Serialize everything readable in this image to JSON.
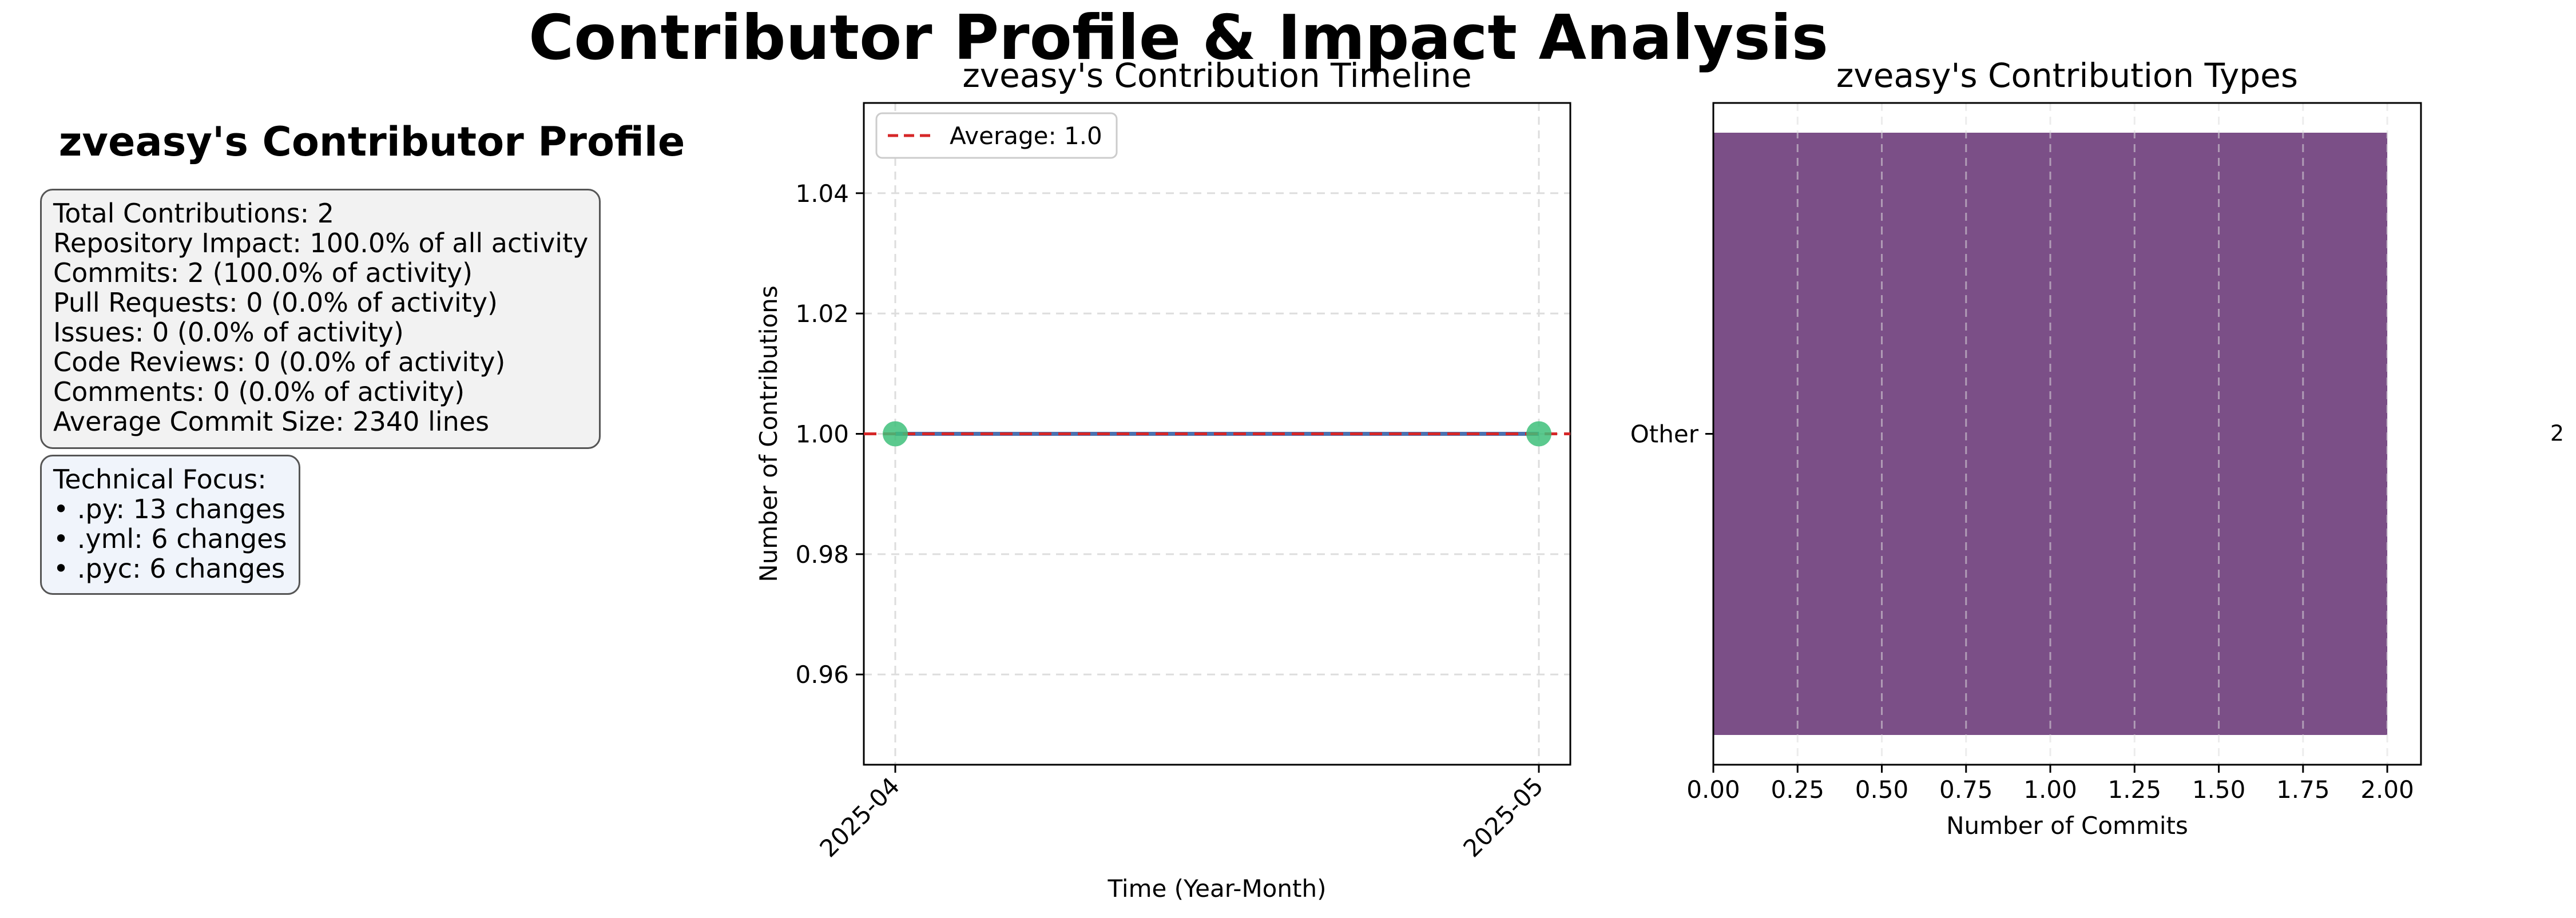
{
  "figure": {
    "title": "Contributor Profile & Impact Analysis"
  },
  "profile": {
    "title": "zveasy's Contributor Profile",
    "stats": [
      "Total Contributions: 2",
      "Repository Impact: 100.0% of all activity",
      "Commits: 2 (100.0% of activity)",
      "Pull Requests: 0 (0.0% of activity)",
      "Issues: 0 (0.0% of activity)",
      "Code Reviews: 0 (0.0% of activity)",
      "Comments: 0 (0.0% of activity)",
      "Average Commit Size: 2340 lines"
    ],
    "focus_title": "Technical Focus:",
    "focus": [
      "• .py: 13 changes",
      "• .yml: 6 changes",
      "• .pyc: 6 changes"
    ]
  },
  "chart_data": [
    {
      "type": "line",
      "title": "zveasy's Contribution Timeline",
      "xlabel": "Time (Year-Month)",
      "ylabel": "Number of Contributions",
      "x": [
        "2025-04",
        "2025-05"
      ],
      "series": [
        {
          "values": [
            1,
            1
          ],
          "color": "#4c72b0",
          "marker_color": "#3ec07a"
        }
      ],
      "average": {
        "label": "Average: 1.0",
        "value": 1.0,
        "color": "#d62728"
      },
      "ylim": [
        0.945,
        1.055
      ],
      "yticks": [
        "0.96",
        "0.98",
        "1.00",
        "1.02",
        "1.04"
      ],
      "grid": true,
      "legend": "top-left"
    },
    {
      "type": "bar",
      "orientation": "horizontal",
      "title": "zveasy's Contribution Types",
      "xlabel": "Number of Commits",
      "categories": [
        "Other"
      ],
      "values": [
        2
      ],
      "value_labels": [
        "2"
      ],
      "color": "#7b4f87",
      "xlim": [
        0,
        2.1
      ],
      "xticks": [
        "0.00",
        "0.25",
        "0.50",
        "0.75",
        "1.00",
        "1.25",
        "1.50",
        "1.75",
        "2.00"
      ],
      "grid": true
    }
  ]
}
